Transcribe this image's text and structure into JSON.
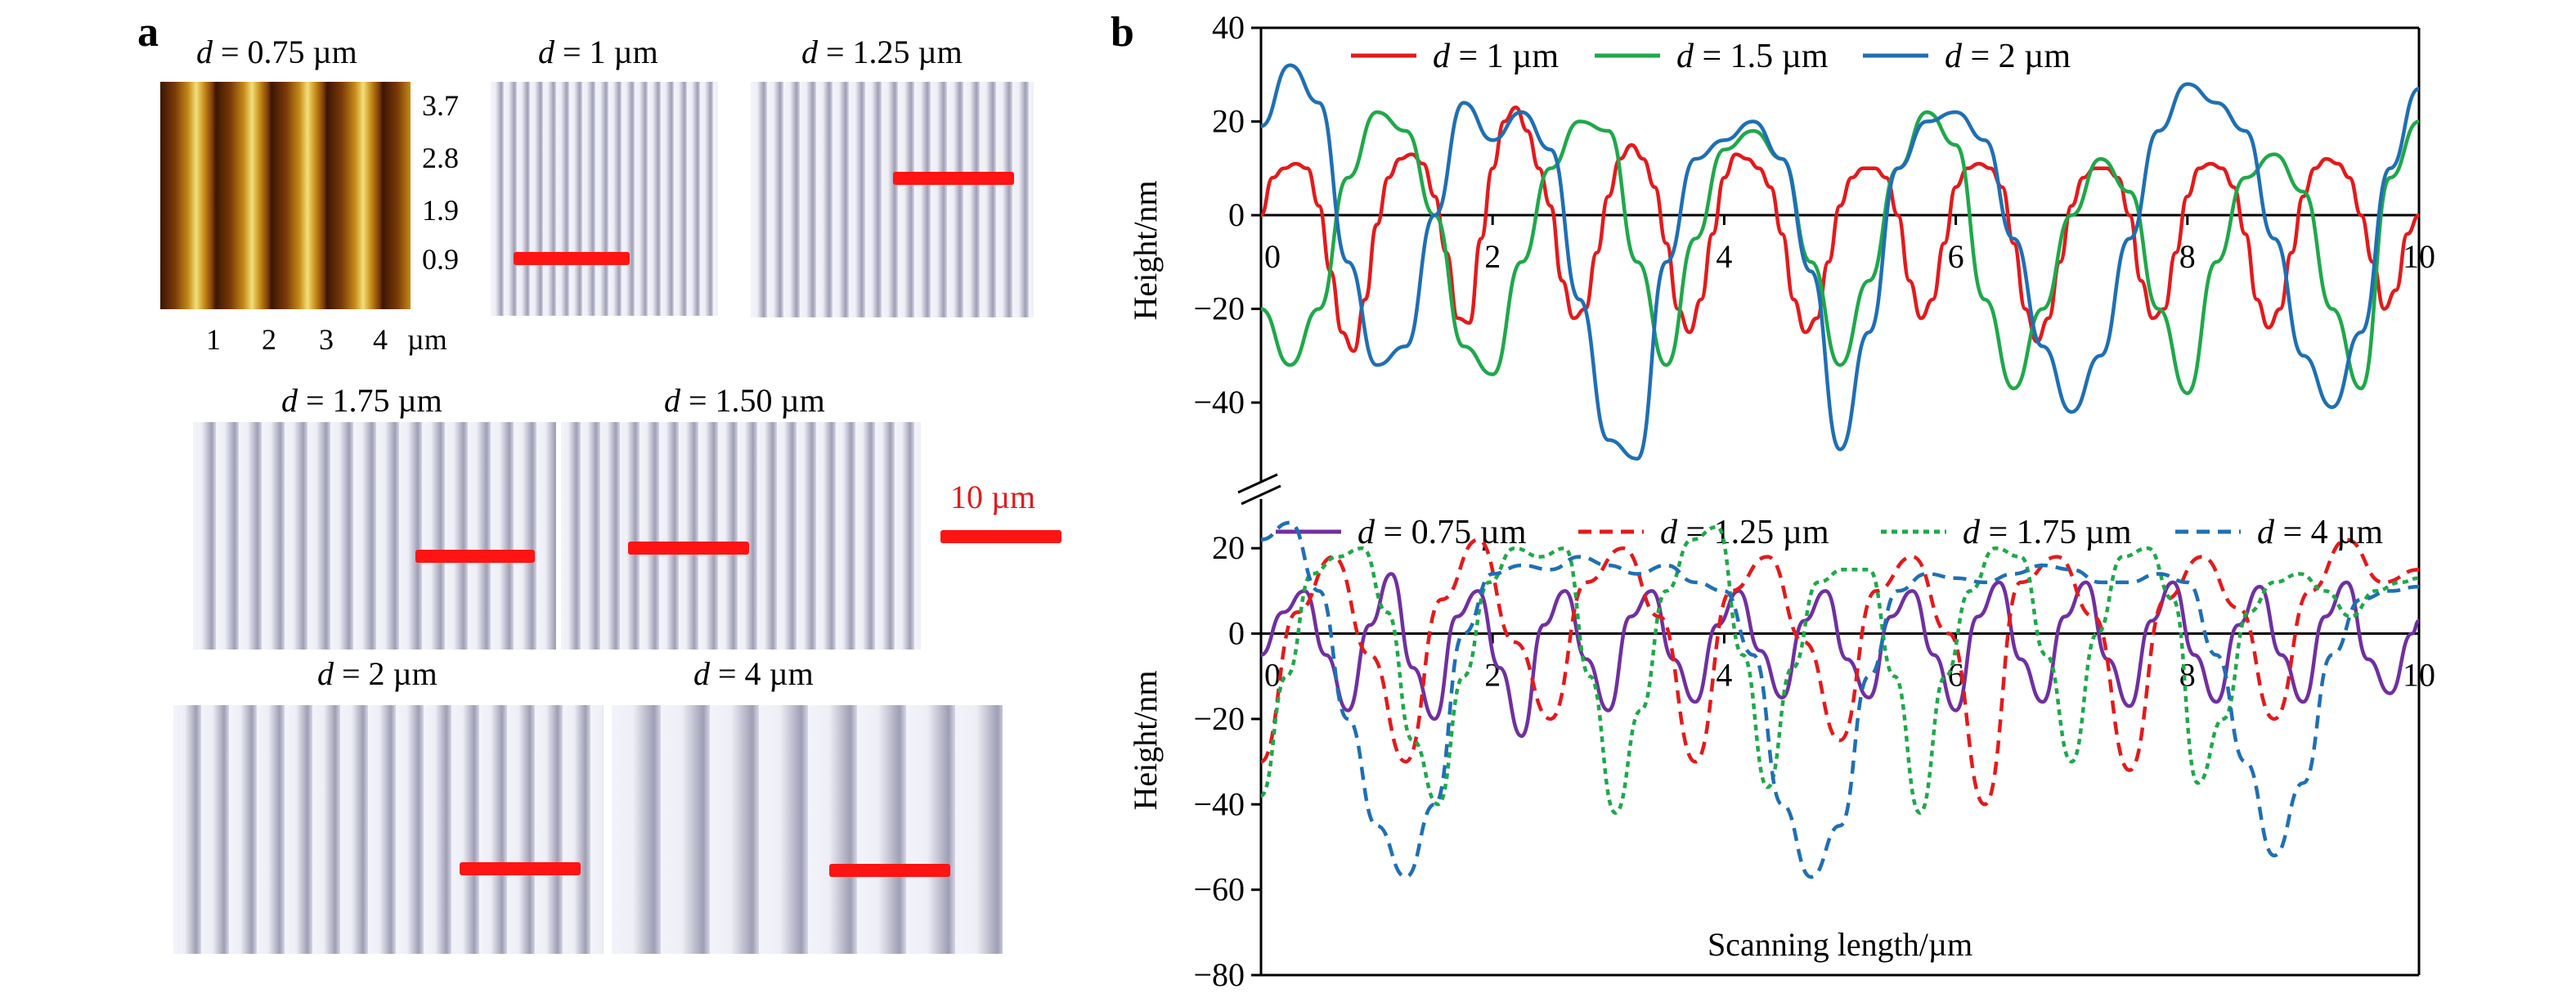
{
  "panel_a": {
    "letter": "a",
    "afm": {
      "d_var": "d",
      "d_value": " = 0.75 µm",
      "colorbar_ticks": [
        "3.7",
        "2.8",
        "1.9",
        "0.9"
      ],
      "x_ticks": [
        "1",
        "2",
        "3",
        "4",
        "µm"
      ]
    },
    "images": [
      {
        "d_var": "d",
        "d_value": " = 1 µm"
      },
      {
        "d_var": "d",
        "d_value": " = 1.25 µm"
      },
      {
        "d_var": "d",
        "d_value": " = 1.75 µm"
      },
      {
        "d_var": "d",
        "d_value": " = 1.50 µm"
      },
      {
        "d_var": "d",
        "d_value": " = 2 µm"
      },
      {
        "d_var": "d",
        "d_value": " = 4 µm"
      }
    ],
    "scale_label": "10 µm",
    "colors": {
      "scalebar": "#ff1414",
      "scale_text": "#e31a1c"
    }
  },
  "panel_b": {
    "letter": "b",
    "break_symbol": "//"
  },
  "chart_data": [
    {
      "type": "line",
      "xlabel": "",
      "ylabel": "Height/nm",
      "xlim": [
        0,
        10
      ],
      "ylim": [
        -55,
        40
      ],
      "x_ticks": [
        0,
        2,
        4,
        6,
        8,
        10
      ],
      "y_ticks": [
        40,
        20,
        0,
        -20,
        -40
      ],
      "legend_position": "top",
      "series": [
        {
          "name": "d = 1 µm",
          "color": "#e31a1c",
          "dash": "solid",
          "period": 1.0,
          "shape": "pulse",
          "x": [
            0,
            0.1,
            0.2,
            0.3,
            0.4,
            0.5,
            0.6,
            0.7,
            0.8,
            0.9,
            1.0,
            1.1,
            1.2,
            1.3,
            1.4,
            1.5,
            1.6,
            1.7,
            1.8,
            1.9,
            2.0,
            2.1,
            2.2,
            2.3,
            2.4,
            2.5,
            2.6,
            2.7,
            2.8,
            2.9,
            3.0,
            3.1,
            3.2,
            3.3,
            3.4,
            3.5,
            3.6,
            3.7,
            3.8,
            3.9,
            4.0,
            4.1,
            4.2,
            4.3,
            4.4,
            4.5,
            4.6,
            4.7,
            4.8,
            4.9,
            5.0,
            5.1,
            5.2,
            5.3,
            5.4,
            5.5,
            5.6,
            5.7,
            5.8,
            5.9,
            6.0,
            6.1,
            6.2,
            6.3,
            6.4,
            6.5,
            6.6,
            6.7,
            6.8,
            6.9,
            7.0,
            7.1,
            7.2,
            7.3,
            7.4,
            7.5,
            7.6,
            7.7,
            7.8,
            7.9,
            8.0,
            8.1,
            8.2,
            8.3,
            8.4,
            8.5,
            8.6,
            8.7,
            8.8,
            8.9,
            9.0,
            9.1,
            9.2,
            9.3,
            9.4,
            9.5,
            9.6,
            9.7,
            9.8,
            9.9,
            10
          ],
          "y": [
            0,
            8,
            10,
            11,
            10,
            2,
            -12,
            -25,
            -29,
            -18,
            -2,
            8,
            12,
            13,
            11,
            4,
            -8,
            -22,
            -23,
            -5,
            10,
            20,
            23,
            18,
            10,
            2,
            -14,
            -22,
            -20,
            -8,
            4,
            12,
            15,
            12,
            6,
            -6,
            -20,
            -25,
            -18,
            -4,
            8,
            13,
            12,
            10,
            6,
            -4,
            -18,
            -25,
            -22,
            -10,
            2,
            8,
            10,
            10,
            8,
            0,
            -14,
            -22,
            -18,
            -6,
            6,
            10,
            11,
            10,
            6,
            -6,
            -20,
            -27,
            -22,
            -10,
            2,
            8,
            10,
            10,
            8,
            0,
            -14,
            -22,
            -20,
            -8,
            4,
            10,
            11,
            10,
            6,
            -4,
            -18,
            -24,
            -20,
            -8,
            4,
            10,
            12,
            11,
            8,
            0,
            -10,
            -20,
            -16,
            -4,
            0
          ]
        },
        {
          "name": "d = 1.5 µm",
          "color": "#1fa84a",
          "dash": "solid",
          "period": 1.5,
          "shape": "wave",
          "x": [
            0,
            0.25,
            0.5,
            0.75,
            1.0,
            1.25,
            1.5,
            1.75,
            2.0,
            2.25,
            2.5,
            2.75,
            3.0,
            3.25,
            3.5,
            3.75,
            4.0,
            4.25,
            4.5,
            4.75,
            5.0,
            5.25,
            5.5,
            5.75,
            6.0,
            6.25,
            6.5,
            6.75,
            7.0,
            7.25,
            7.5,
            7.75,
            8.0,
            8.25,
            8.5,
            8.75,
            9.0,
            9.25,
            9.5,
            9.75,
            10
          ],
          "y": [
            -20,
            -32,
            -20,
            8,
            22,
            18,
            0,
            -28,
            -34,
            -10,
            10,
            20,
            18,
            -10,
            -32,
            -5,
            14,
            18,
            12,
            -10,
            -32,
            -14,
            10,
            22,
            15,
            -18,
            -37,
            -20,
            0,
            12,
            5,
            -20,
            -38,
            -10,
            8,
            13,
            5,
            -20,
            -37,
            8,
            20
          ]
        },
        {
          "name": "d = 2 µm",
          "color": "#1f6fb4",
          "dash": "solid",
          "period": 2.0,
          "shape": "wave",
          "x": [
            0,
            0.25,
            0.5,
            0.75,
            1.0,
            1.25,
            1.5,
            1.75,
            2.0,
            2.25,
            2.5,
            2.75,
            3.0,
            3.25,
            3.5,
            3.75,
            4.0,
            4.25,
            4.5,
            4.75,
            5.0,
            5.25,
            5.5,
            5.75,
            6.0,
            6.25,
            6.5,
            6.75,
            7.0,
            7.25,
            7.5,
            7.75,
            8.0,
            8.25,
            8.5,
            8.75,
            9.0,
            9.25,
            9.5,
            9.75,
            10
          ],
          "y": [
            19,
            32,
            24,
            -10,
            -32,
            -28,
            0,
            24,
            16,
            22,
            14,
            -18,
            -48,
            -52,
            -10,
            12,
            16,
            20,
            12,
            -12,
            -50,
            -25,
            10,
            20,
            22,
            16,
            -5,
            -28,
            -42,
            -30,
            -5,
            18,
            28,
            24,
            18,
            -5,
            -30,
            -41,
            -25,
            10,
            27
          ]
        }
      ]
    },
    {
      "type": "line",
      "xlabel": "Scanning length/µm",
      "ylabel": "Height/nm",
      "xlim": [
        0,
        10
      ],
      "ylim": [
        -80,
        30
      ],
      "x_ticks": [
        0,
        2,
        4,
        6,
        8,
        10
      ],
      "y_ticks": [
        20,
        0,
        -20,
        -40,
        -60,
        -80
      ],
      "legend_position": "top",
      "series": [
        {
          "name": "d = 0.75 µm",
          "color": "#7030a0",
          "dash": "solid",
          "period": 0.75,
          "shape": "wave",
          "x": [
            0,
            0.19,
            0.375,
            0.56,
            0.75,
            0.94,
            1.125,
            1.31,
            1.5,
            1.69,
            1.875,
            2.06,
            2.25,
            2.44,
            2.625,
            2.81,
            3.0,
            3.19,
            3.375,
            3.56,
            3.75,
            3.94,
            4.125,
            4.31,
            4.5,
            4.69,
            4.875,
            5.06,
            5.25,
            5.44,
            5.625,
            5.81,
            6.0,
            6.19,
            6.375,
            6.56,
            6.75,
            6.94,
            7.125,
            7.31,
            7.5,
            7.69,
            7.875,
            8.06,
            8.25,
            8.44,
            8.625,
            8.81,
            9.0,
            9.19,
            9.375,
            9.56,
            9.75,
            9.94,
            10
          ],
          "y": [
            -5,
            5,
            10,
            -5,
            -18,
            2,
            14,
            -8,
            -20,
            4,
            10,
            -8,
            -24,
            2,
            10,
            -6,
            -18,
            4,
            10,
            -6,
            -16,
            2,
            10,
            -4,
            -15,
            3,
            10,
            -6,
            -15,
            4,
            10,
            -5,
            -18,
            4,
            12,
            -6,
            -16,
            4,
            12,
            -6,
            -17,
            3,
            12,
            -5,
            -16,
            2,
            11,
            -5,
            -16,
            4,
            12,
            -6,
            -14,
            0,
            3
          ]
        },
        {
          "name": "d = 1.25 µm",
          "color": "#e31a1c",
          "dash": "dashed",
          "period": 1.25,
          "shape": "wave",
          "x": [
            0,
            0.31,
            0.625,
            0.94,
            1.25,
            1.56,
            1.875,
            2.19,
            2.5,
            2.81,
            3.125,
            3.44,
            3.75,
            4.06,
            4.375,
            4.69,
            5.0,
            5.31,
            5.625,
            5.94,
            6.25,
            6.56,
            6.875,
            7.19,
            7.5,
            7.81,
            8.125,
            8.44,
            8.75,
            9.06,
            9.375,
            9.69,
            10
          ],
          "y": [
            -30,
            5,
            18,
            -5,
            -30,
            8,
            22,
            -2,
            -20,
            12,
            20,
            4,
            -30,
            10,
            18,
            -2,
            -25,
            10,
            18,
            0,
            -40,
            12,
            18,
            4,
            -32,
            8,
            18,
            6,
            -20,
            10,
            22,
            12,
            15
          ]
        },
        {
          "name": "d = 1.75 µm",
          "color": "#1fa84a",
          "dash": "dotted",
          "period": 1.75,
          "shape": "wave",
          "x": [
            0,
            0.22,
            0.44,
            0.66,
            0.875,
            1.09,
            1.31,
            1.53,
            1.75,
            1.97,
            2.19,
            2.41,
            2.625,
            2.84,
            3.06,
            3.28,
            3.5,
            3.72,
            3.94,
            4.16,
            4.375,
            4.59,
            4.81,
            5.03,
            5.25,
            5.47,
            5.69,
            5.91,
            6.125,
            6.34,
            6.56,
            6.78,
            7.0,
            7.22,
            7.44,
            7.66,
            7.875,
            8.09,
            8.31,
            8.53,
            8.75,
            8.97,
            9.19,
            9.41,
            9.625,
            9.84,
            10
          ],
          "y": [
            -38,
            -10,
            14,
            18,
            20,
            5,
            -25,
            -40,
            -10,
            12,
            20,
            18,
            20,
            -10,
            -42,
            -18,
            10,
            22,
            25,
            -5,
            -36,
            -8,
            12,
            15,
            15,
            -10,
            -42,
            -10,
            10,
            20,
            18,
            -5,
            -30,
            0,
            18,
            20,
            8,
            -35,
            -20,
            5,
            12,
            14,
            10,
            4,
            10,
            12,
            13
          ]
        },
        {
          "name": "d = 4 µm",
          "color": "#1f6fb4",
          "dash": "dashed",
          "period": 4.0,
          "shape": "wave",
          "x": [
            0,
            0.25,
            0.5,
            0.75,
            1.0,
            1.25,
            1.5,
            1.75,
            2.0,
            2.25,
            2.5,
            2.75,
            3.0,
            3.25,
            3.5,
            3.75,
            4.0,
            4.25,
            4.5,
            4.75,
            5.0,
            5.25,
            5.5,
            5.75,
            6.0,
            6.25,
            6.5,
            6.75,
            7.0,
            7.25,
            7.5,
            7.75,
            8.0,
            8.25,
            8.5,
            8.75,
            9.0,
            9.25,
            9.5,
            9.75,
            10
          ],
          "y": [
            22,
            26,
            10,
            -20,
            -45,
            -57,
            -40,
            0,
            14,
            16,
            15,
            18,
            16,
            14,
            16,
            12,
            10,
            -5,
            -40,
            -57,
            -45,
            -10,
            10,
            14,
            13,
            12,
            14,
            16,
            15,
            12,
            12,
            14,
            12,
            -5,
            -30,
            -52,
            -35,
            -5,
            8,
            10,
            11
          ]
        }
      ]
    }
  ]
}
